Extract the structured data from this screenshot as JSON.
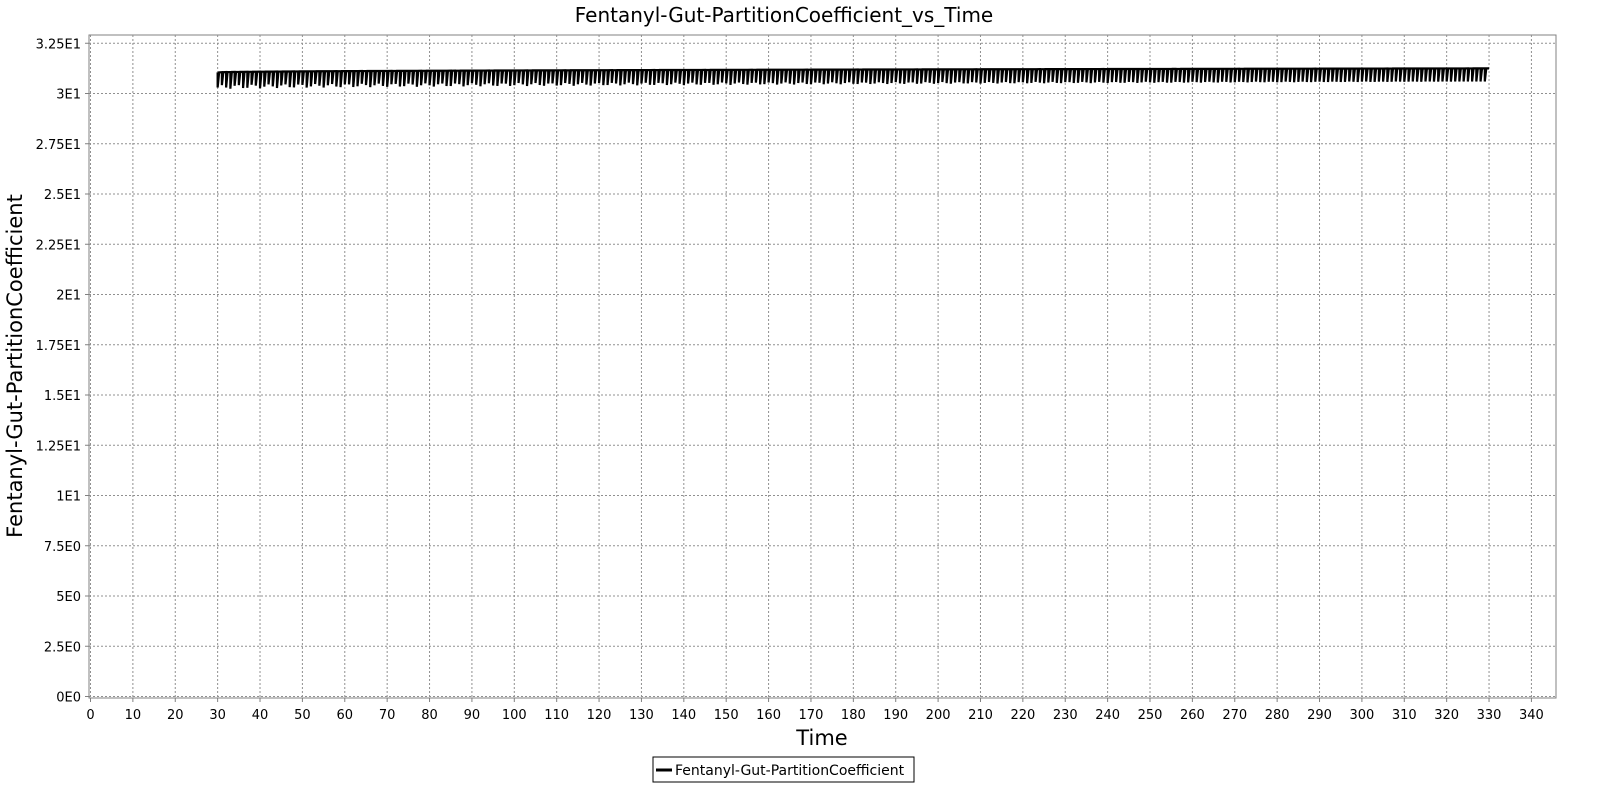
{
  "chart_data": {
    "type": "line",
    "title": "Fentanyl-Gut-PartitionCoefficient_vs_Time",
    "xlabel": "Time",
    "ylabel": "Fentanyl-Gut-PartitionCoefficient",
    "xlim": [
      0,
      345
    ],
    "ylim": [
      0,
      32.8
    ],
    "x_ticks": [
      0,
      10,
      20,
      30,
      40,
      50,
      60,
      70,
      80,
      90,
      100,
      110,
      120,
      130,
      140,
      150,
      160,
      170,
      180,
      190,
      200,
      210,
      220,
      230,
      240,
      250,
      260,
      270,
      280,
      290,
      300,
      310,
      320,
      330,
      340
    ],
    "y_ticks": [
      {
        "value": 0,
        "label": "0E0"
      },
      {
        "value": 2.5,
        "label": "2.5E0"
      },
      {
        "value": 5,
        "label": "5E0"
      },
      {
        "value": 7.5,
        "label": "7.5E0"
      },
      {
        "value": 10,
        "label": "1E1"
      },
      {
        "value": 12.5,
        "label": "1.25E1"
      },
      {
        "value": 15,
        "label": "1.5E1"
      },
      {
        "value": 17.5,
        "label": "1.75E1"
      },
      {
        "value": 20,
        "label": "2E1"
      },
      {
        "value": 22.5,
        "label": "2.25E1"
      },
      {
        "value": 25,
        "label": "2.5E1"
      },
      {
        "value": 27.5,
        "label": "2.75E1"
      },
      {
        "value": 30,
        "label": "3E1"
      },
      {
        "value": 32.5,
        "label": "3.25E1"
      }
    ],
    "grid": true,
    "legend_position": "bottom-center",
    "series": [
      {
        "name": "Fentanyl-Gut-PartitionCoefficient",
        "color": "#000000",
        "x_range": [
          30,
          330
        ],
        "oscillation_period": 1,
        "upper_start": 31.05,
        "upper_end": 31.25,
        "lower_start": 30.3,
        "lower_end": 30.6
      }
    ]
  }
}
